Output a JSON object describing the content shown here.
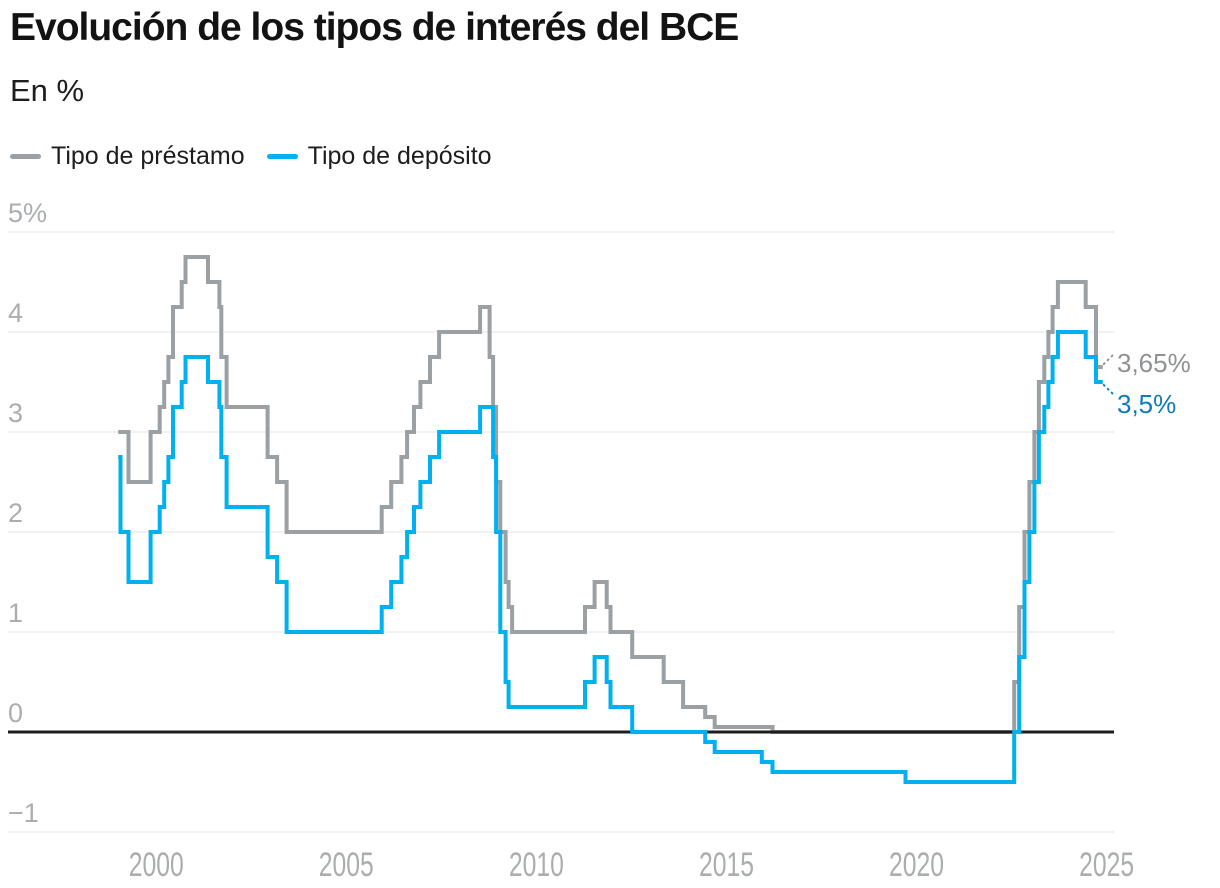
{
  "header": {
    "title": "Evolución de los tipos de interés del BCE",
    "subtitle": "En %"
  },
  "colors": {
    "background": "#ffffff",
    "title_text": "#131313",
    "grid": "#e5e6e6",
    "zero_line": "#1d1d1b",
    "axis_text": "#abaeb0"
  },
  "chart_data": {
    "type": "line",
    "step": true,
    "title": "Evolución de los tipos de interés del BCE",
    "subtitle": "En %",
    "grid": "horizontal",
    "legend_position": "top-left",
    "xlim": [
      1996.1,
      2025.3
    ],
    "ylim": [
      -1.5,
      5
    ],
    "x_ticks": [
      2000,
      2005,
      2010,
      2015,
      2020,
      2025
    ],
    "y_ticks": [
      {
        "value": 5,
        "label": "5%"
      },
      {
        "value": 4,
        "label": "4"
      },
      {
        "value": 3,
        "label": "3"
      },
      {
        "value": 2,
        "label": "2"
      },
      {
        "value": 1,
        "label": "1"
      },
      {
        "value": 0,
        "label": "0"
      },
      {
        "value": -1,
        "label": "−1"
      }
    ],
    "x_end": 2024.9,
    "series": [
      {
        "name": "Tipo de préstamo",
        "color": "#9aa0a3",
        "end_label": "3,65%",
        "end_label_color": "#8f9294",
        "points": [
          [
            1999.0,
            3.0
          ],
          [
            1999.27,
            2.5
          ],
          [
            1999.85,
            3.0
          ],
          [
            2000.09,
            3.25
          ],
          [
            2000.21,
            3.5
          ],
          [
            2000.32,
            3.75
          ],
          [
            2000.44,
            4.25
          ],
          [
            2000.67,
            4.5
          ],
          [
            2000.77,
            4.75
          ],
          [
            2001.36,
            4.5
          ],
          [
            2001.66,
            4.25
          ],
          [
            2001.71,
            3.75
          ],
          [
            2001.85,
            3.25
          ],
          [
            2002.93,
            2.75
          ],
          [
            2003.18,
            2.5
          ],
          [
            2003.43,
            2.0
          ],
          [
            2005.93,
            2.25
          ],
          [
            2006.18,
            2.5
          ],
          [
            2006.45,
            2.75
          ],
          [
            2006.6,
            3.0
          ],
          [
            2006.78,
            3.25
          ],
          [
            2006.95,
            3.5
          ],
          [
            2007.2,
            3.75
          ],
          [
            2007.44,
            4.0
          ],
          [
            2008.52,
            4.25
          ],
          [
            2008.77,
            3.75
          ],
          [
            2008.86,
            3.25
          ],
          [
            2008.94,
            2.5
          ],
          [
            2009.05,
            2.0
          ],
          [
            2009.19,
            1.5
          ],
          [
            2009.27,
            1.25
          ],
          [
            2009.36,
            1.0
          ],
          [
            2011.28,
            1.25
          ],
          [
            2011.53,
            1.5
          ],
          [
            2011.85,
            1.25
          ],
          [
            2011.95,
            1.0
          ],
          [
            2012.52,
            0.75
          ],
          [
            2013.35,
            0.5
          ],
          [
            2013.86,
            0.25
          ],
          [
            2014.44,
            0.15
          ],
          [
            2014.69,
            0.05
          ],
          [
            2016.21,
            0.0
          ],
          [
            2022.57,
            0.5
          ],
          [
            2022.7,
            1.25
          ],
          [
            2022.84,
            2.0
          ],
          [
            2022.97,
            2.5
          ],
          [
            2023.1,
            3.0
          ],
          [
            2023.22,
            3.5
          ],
          [
            2023.36,
            3.75
          ],
          [
            2023.47,
            4.0
          ],
          [
            2023.58,
            4.25
          ],
          [
            2023.72,
            4.5
          ],
          [
            2024.45,
            4.25
          ],
          [
            2024.72,
            3.65
          ]
        ]
      },
      {
        "name": "Tipo de depósito",
        "color": "#00b0ef",
        "end_label": "3,5%",
        "end_label_color": "#0c7cba",
        "points": [
          [
            1999.0,
            2.75
          ],
          [
            1999.06,
            2.0
          ],
          [
            1999.27,
            1.5
          ],
          [
            1999.85,
            2.0
          ],
          [
            2000.09,
            2.25
          ],
          [
            2000.21,
            2.5
          ],
          [
            2000.32,
            2.75
          ],
          [
            2000.44,
            3.25
          ],
          [
            2000.67,
            3.5
          ],
          [
            2000.77,
            3.75
          ],
          [
            2001.36,
            3.5
          ],
          [
            2001.66,
            3.25
          ],
          [
            2001.71,
            2.75
          ],
          [
            2001.85,
            2.25
          ],
          [
            2002.93,
            1.75
          ],
          [
            2003.18,
            1.5
          ],
          [
            2003.43,
            1.0
          ],
          [
            2005.93,
            1.25
          ],
          [
            2006.18,
            1.5
          ],
          [
            2006.45,
            1.75
          ],
          [
            2006.6,
            2.0
          ],
          [
            2006.78,
            2.25
          ],
          [
            2006.95,
            2.5
          ],
          [
            2007.2,
            2.75
          ],
          [
            2007.44,
            3.0
          ],
          [
            2008.52,
            3.25
          ],
          [
            2008.86,
            2.75
          ],
          [
            2008.94,
            2.0
          ],
          [
            2009.05,
            1.0
          ],
          [
            2009.19,
            0.5
          ],
          [
            2009.27,
            0.25
          ],
          [
            2011.28,
            0.5
          ],
          [
            2011.53,
            0.75
          ],
          [
            2011.85,
            0.5
          ],
          [
            2011.95,
            0.25
          ],
          [
            2012.52,
            0.0
          ],
          [
            2014.44,
            -0.1
          ],
          [
            2014.69,
            -0.2
          ],
          [
            2015.93,
            -0.3
          ],
          [
            2016.21,
            -0.4
          ],
          [
            2019.71,
            -0.5
          ],
          [
            2022.57,
            0.0
          ],
          [
            2022.7,
            0.75
          ],
          [
            2022.84,
            1.5
          ],
          [
            2022.97,
            2.0
          ],
          [
            2023.1,
            2.5
          ],
          [
            2023.22,
            3.0
          ],
          [
            2023.36,
            3.25
          ],
          [
            2023.47,
            3.5
          ],
          [
            2023.58,
            3.75
          ],
          [
            2023.72,
            4.0
          ],
          [
            2024.45,
            3.75
          ],
          [
            2024.72,
            3.5
          ]
        ]
      }
    ]
  }
}
